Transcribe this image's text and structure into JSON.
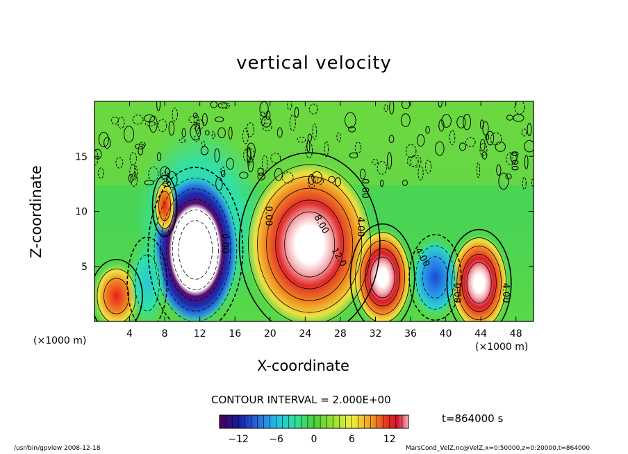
{
  "chart_data": {
    "type": "heatmap",
    "title": "vertical velocity",
    "xlabel": "X-coordinate",
    "ylabel": "Z-coordinate",
    "x_unit": "(×1000 m)",
    "xlim": [
      0,
      50
    ],
    "ylim": [
      0,
      20
    ],
    "x_ticks": [
      "4",
      "8",
      "12",
      "16",
      "20",
      "24",
      "28",
      "32",
      "36",
      "40",
      "44",
      "48"
    ],
    "y_ticks": [
      "5",
      "10",
      "15"
    ],
    "colorbar": {
      "range": [
        -15,
        15
      ],
      "ticks": [
        "−12",
        "−6",
        "0",
        "6",
        "12"
      ],
      "colors": [
        "#4b0055",
        "#1a1a9e",
        "#2a66e0",
        "#22c0e6",
        "#2ee0a0",
        "#4ccf3a",
        "#98e030",
        "#f0f040",
        "#f0a020",
        "#e83a1e",
        "#d2122a",
        "#f8b0b8"
      ]
    },
    "features": [
      {
        "x": 11.5,
        "z": 6.5,
        "w": -18
      },
      {
        "x": 24.5,
        "z": 7.0,
        "w": 18
      },
      {
        "x": 32.8,
        "z": 4.0,
        "w": 14
      },
      {
        "x": 43.8,
        "z": 3.5,
        "w": 14
      },
      {
        "x": 38.8,
        "z": 4.0,
        "w": -8
      },
      {
        "x": 2.5,
        "z": 2.3,
        "w": 9
      },
      {
        "x": 6.0,
        "z": 3.5,
        "w": -5
      },
      {
        "x": 8.0,
        "z": 10.5,
        "w": 8
      }
    ],
    "contour_labels": [
      "0.00",
      "8.00",
      "12.0",
      "4.00",
      "0.00",
      "0.00",
      "4.00",
      "0.00",
      "4.00",
      "0.00"
    ],
    "contour_interval": "CONTOUR INTERVAL = 2.000E+00"
  },
  "time": "t=864000 s",
  "footer": {
    "left": "/usr/bin/gpview   2008-12-18",
    "right": "MarsCond_VelZ.nc@VelZ,x=0:50000,z=0:20000,t=864000"
  }
}
